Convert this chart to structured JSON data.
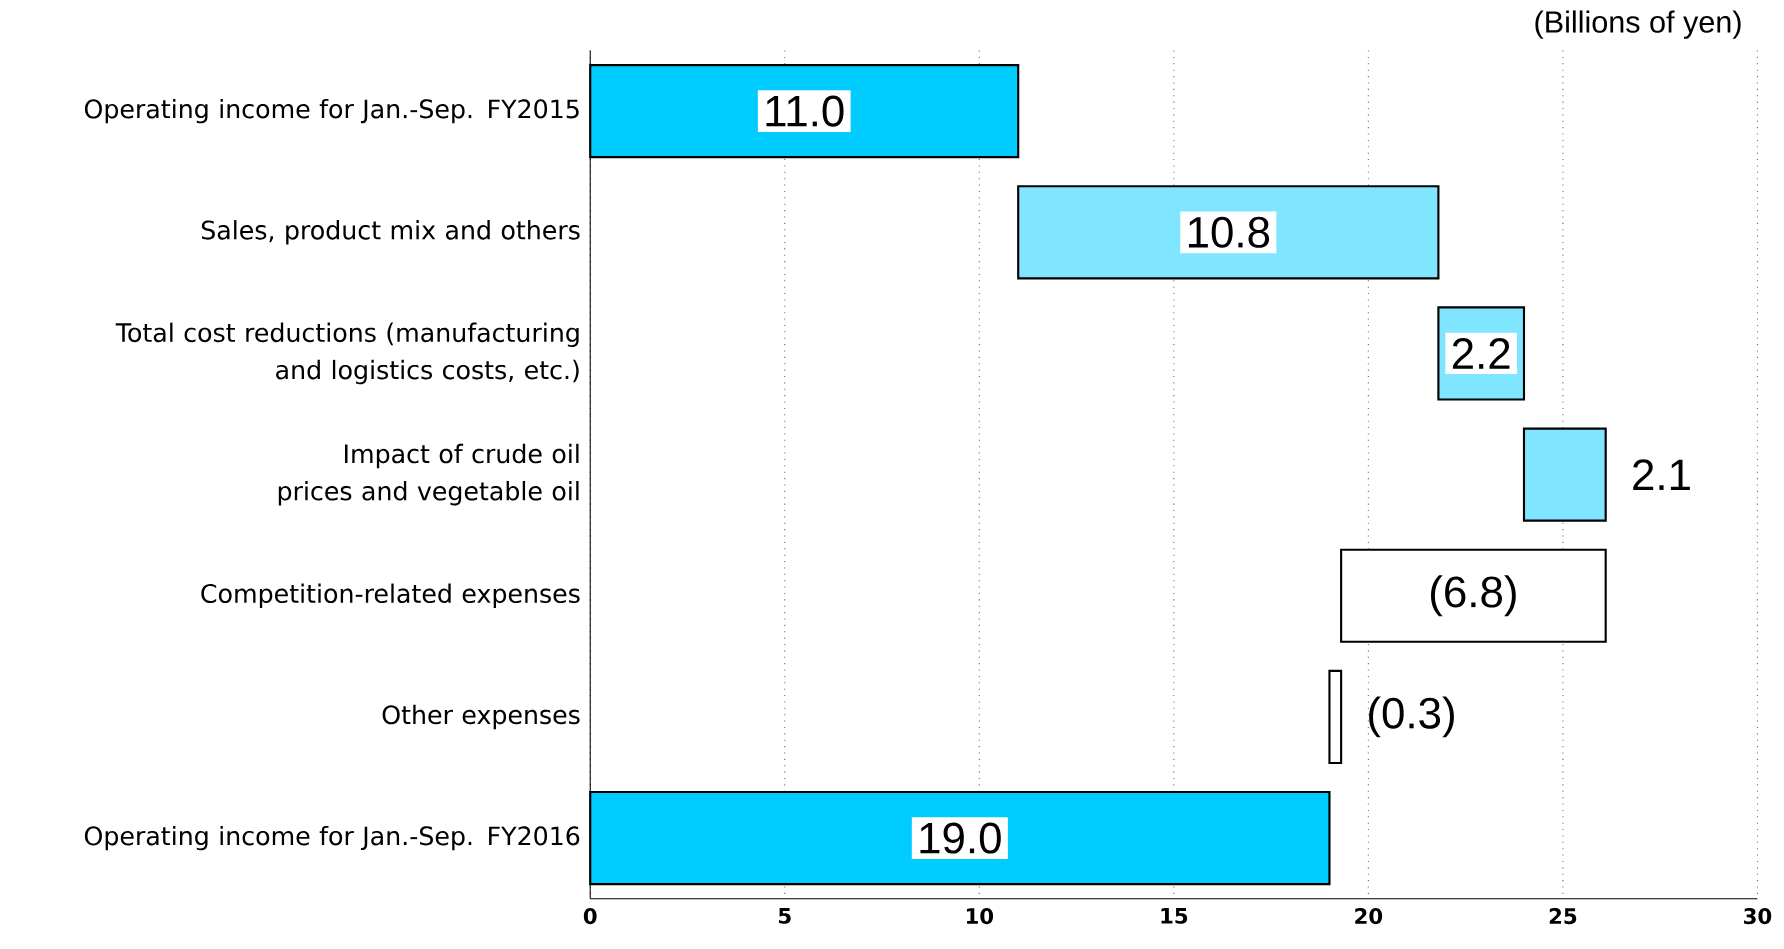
{
  "chart_data": {
    "type": "bar",
    "orientation": "horizontal",
    "categories": [
      "Operating income for Jan.-Sep. FY2015",
      "Sales, product mix and others",
      "Total cost reductions (manufacturing and logistics costs, etc.)",
      "Impact of crude oil prices and vegetable oil",
      "Competition-related expenses",
      "Other expenses",
      "Operating income for Jan.-Sep. FY2016"
    ],
    "values": [
      11.0,
      10.8,
      2.2,
      2.1,
      -6.8,
      -0.3,
      19.0
    ],
    "base": [
      0,
      11.0,
      21.8,
      24.0,
      26.1,
      19.3,
      0
    ],
    "colors": [
      "#00ccff",
      "#80e6ff",
      "#80e6ff",
      "#80e6ff",
      "#ffffff",
      "#ffffff",
      "#00ccff"
    ],
    "value_labels": [
      "11.0",
      "10.8",
      "2.2",
      "2.1",
      "(6.8)",
      "(0.3)",
      "19.0"
    ],
    "xlim": [
      0,
      30
    ],
    "xticks": [
      0,
      5,
      10,
      15,
      20,
      25,
      30
    ],
    "grid": "x",
    "annotations": [
      "(Billions of yen)"
    ]
  }
}
